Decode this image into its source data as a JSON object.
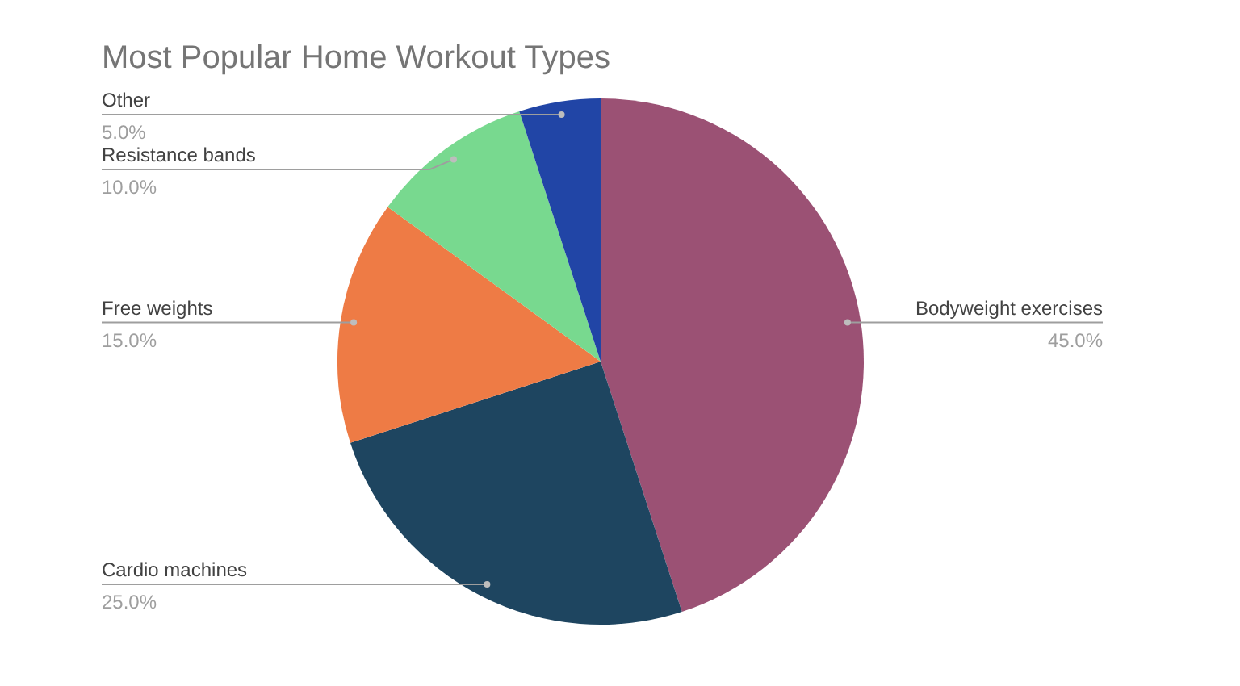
{
  "chart_data": {
    "type": "pie",
    "title": "Most Popular Home Workout Types",
    "categories": [
      "Bodyweight exercises",
      "Cardio machines",
      "Free weights",
      "Resistance bands",
      "Other"
    ],
    "values": [
      45,
      25,
      15,
      10,
      5
    ],
    "colors": [
      "#9b5174",
      "#1e4560",
      "#ee7b45",
      "#78d98f",
      "#2145a6"
    ],
    "value_labels": [
      "45.0%",
      "25.0%",
      "15.0%",
      "10.0%",
      "5.0%"
    ],
    "legend": false
  }
}
